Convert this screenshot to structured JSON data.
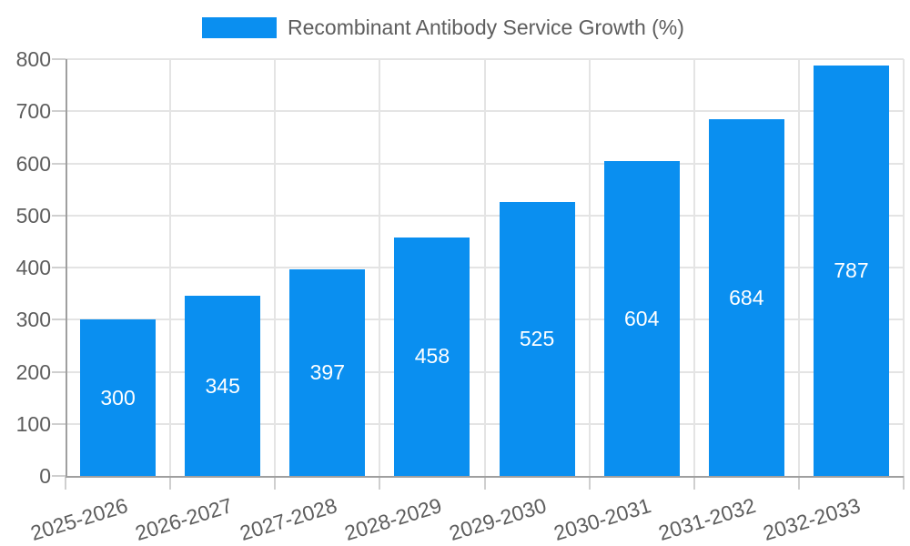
{
  "legend": {
    "label": "Recombinant Antibody Service Growth (%)"
  },
  "colors": {
    "bar": "#0a8ff0",
    "value_label": "#ffffff",
    "axis_text": "#5d5d5d",
    "grid_line": "#e4e4e4",
    "tick_line": "#cfcfcf",
    "axis_line": "#9f9f9f",
    "background": "#ffffff"
  },
  "chart_data": {
    "type": "bar",
    "title": "Recombinant Antibody Service Growth (%)",
    "categories": [
      "2025-2026",
      "2026-2027",
      "2027-2028",
      "2028-2029",
      "2029-2030",
      "2030-2031",
      "2031-2032",
      "2032-2033"
    ],
    "values": [
      300,
      345,
      397,
      458,
      525,
      604,
      684,
      787
    ],
    "xlabel": "",
    "ylabel": "",
    "ylim": [
      0,
      800
    ],
    "ytick_step": 100,
    "yticks": [
      0,
      100,
      200,
      300,
      400,
      500,
      600,
      700,
      800
    ],
    "grid": true,
    "legend_entries": [
      "Recombinant Antibody Service Growth (%)"
    ],
    "legend_position": "top-center",
    "value_labels_position": "inside-center",
    "bar_color": "#0a8ff0"
  }
}
